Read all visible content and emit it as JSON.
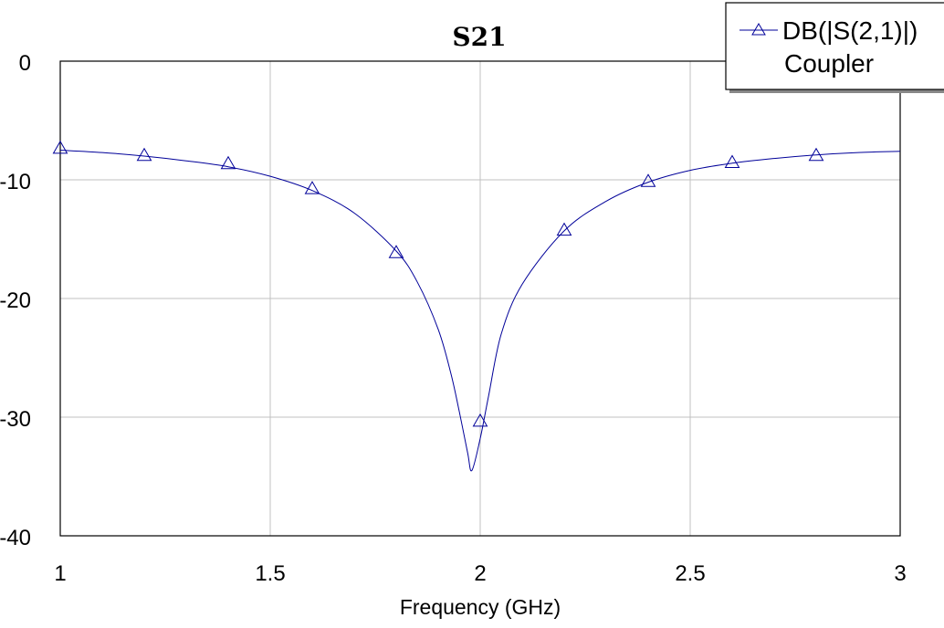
{
  "chart_data": {
    "type": "line",
    "title": "S21",
    "xlabel": "Frequency (GHz)",
    "ylabel": "",
    "xlim": [
      1,
      3
    ],
    "ylim": [
      -40,
      0
    ],
    "xticks": [
      1,
      1.5,
      2,
      2.5,
      3
    ],
    "xtick_labels": [
      "1",
      "1.5",
      "2",
      "2.5",
      "3"
    ],
    "yticks": [
      0,
      -10,
      -20,
      -30,
      -40
    ],
    "ytick_labels": [
      "0",
      "-10",
      "-20",
      "-30",
      "-40"
    ],
    "grid": true,
    "legend_position": "top-right",
    "series": [
      {
        "name": "DB(|S(2,1)|)",
        "source": "Coupler",
        "color": "#000099",
        "marker": "triangle",
        "x": [
          1.0,
          1.1,
          1.2,
          1.3,
          1.4,
          1.5,
          1.6,
          1.7,
          1.8,
          1.85,
          1.9,
          1.93,
          1.95,
          1.97,
          1.98,
          2.0,
          2.02,
          2.05,
          2.1,
          2.2,
          2.3,
          2.4,
          2.5,
          2.6,
          2.7,
          2.8,
          2.9,
          3.0
        ],
        "y": [
          -7.5,
          -7.7,
          -8.0,
          -8.4,
          -8.9,
          -9.7,
          -10.9,
          -12.8,
          -16.0,
          -18.6,
          -22.6,
          -26.3,
          -29.5,
          -33.0,
          -34.5,
          -31.8,
          -28.2,
          -23.0,
          -18.8,
          -14.3,
          -11.8,
          -10.2,
          -9.2,
          -8.6,
          -8.2,
          -7.9,
          -7.7,
          -7.6
        ]
      }
    ],
    "markers": {
      "x": [
        1.0,
        1.2,
        1.4,
        1.6,
        1.8,
        2.0,
        2.2,
        2.4,
        2.6,
        2.8
      ],
      "y": [
        -7.3,
        -7.9,
        -8.6,
        -10.7,
        -16.1,
        -30.3,
        -14.2,
        -10.1,
        -8.5,
        -7.9
      ]
    }
  }
}
